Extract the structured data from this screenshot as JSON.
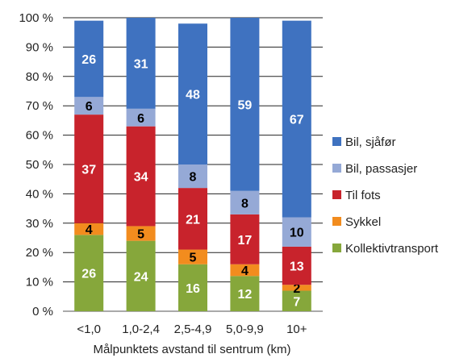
{
  "chart_data": {
    "type": "bar",
    "stacked": true,
    "percent_stacked": true,
    "title": "",
    "xlabel": "Målpunktets avstand til sentrum (km)",
    "ylabel": "",
    "ylim": [
      0,
      100
    ],
    "yticks": [
      "0 %",
      "10 %",
      "20 %",
      "30 %",
      "40 %",
      "50 %",
      "60 %",
      "70 %",
      "80 %",
      "90 %",
      "100 %"
    ],
    "grid": true,
    "legend_position": "right",
    "categories": [
      "<1,0",
      "1,0-2,4",
      "2,5-4,9",
      "5,0-9,9",
      "10+"
    ],
    "series": [
      {
        "name": "Kollektivtransport",
        "color": "#86a73b",
        "label_color": "#ffffff",
        "values": [
          26,
          24,
          16,
          12,
          7
        ]
      },
      {
        "name": "Sykkel",
        "color": "#f28c1e",
        "label_color": "#000000",
        "values": [
          4,
          5,
          5,
          4,
          2
        ]
      },
      {
        "name": "Til fots",
        "color": "#c8232c",
        "label_color": "#ffffff",
        "values": [
          37,
          34,
          21,
          17,
          13
        ]
      },
      {
        "name": "Bil, passasjer",
        "color": "#95a9d6",
        "label_color": "#000000",
        "values": [
          6,
          6,
          8,
          8,
          10
        ]
      },
      {
        "name": "Bil, sjåfør",
        "color": "#3f72c0",
        "label_color": "#ffffff",
        "values": [
          26,
          31,
          48,
          59,
          67
        ]
      }
    ],
    "legend_order": [
      "Bil, sjåfør",
      "Bil, passasjer",
      "Til fots",
      "Sykkel",
      "Kollektivtransport"
    ]
  }
}
